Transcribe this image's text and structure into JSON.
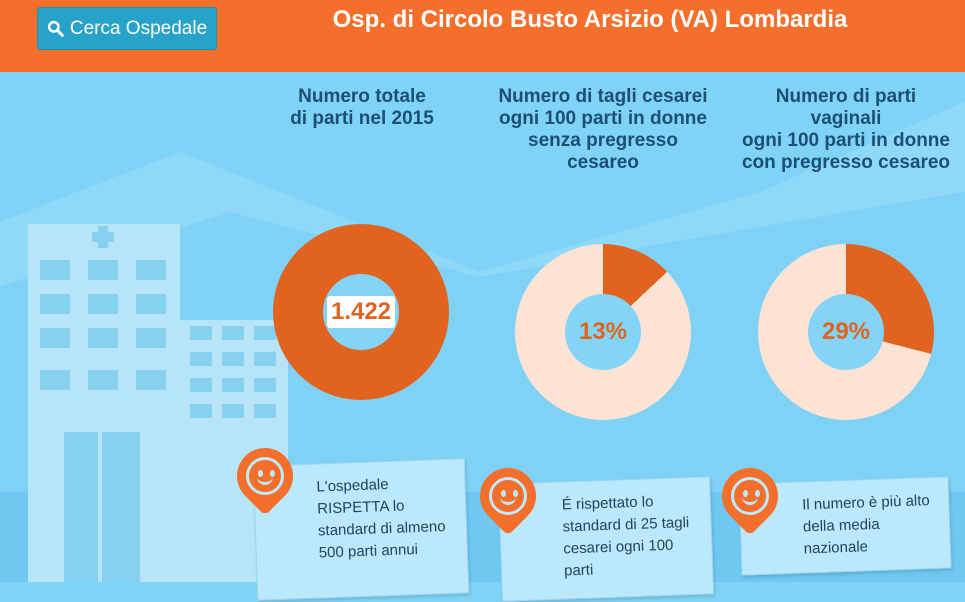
{
  "header": {
    "search_label": "Cerca Ospedale",
    "title": "Osp. di Circolo Busto Arsizio (VA) Lombardia"
  },
  "stats": [
    {
      "title": "Numero totale\ndi parti nel 2015",
      "value": "1.422",
      "fraction": 1.0,
      "note": "L'ospedale RISPETTA lo standard di almeno 500 parti annui"
    },
    {
      "title": "Numero di tagli cesarei\nogni 100 parti in donne\nsenza pregresso\ncesareo",
      "value": "13%",
      "fraction": 0.13,
      "note": "É rispettato lo standard di 25 tagli cesarei ogni 100 parti"
    },
    {
      "title": "Numero di parti\nvaginali\nogni 100 parti in donne\ncon pregresso cesareo",
      "value": "29%",
      "fraction": 0.29,
      "note": "Il numero è più alto della media nazionale"
    }
  ],
  "colors": {
    "header": "#f36f2b",
    "accent": "#e0641f",
    "donut_rest": "#fde3d4",
    "sky": "#7fd3f7"
  },
  "icons": [
    "search-icon",
    "smiley-icon"
  ]
}
